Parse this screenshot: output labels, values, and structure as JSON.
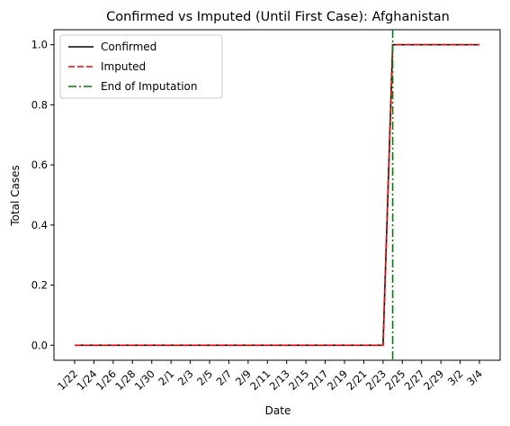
{
  "chart_data": {
    "type": "line",
    "title": "Confirmed vs Imputed (Until First Case): Afghanistan",
    "xlabel": "Date",
    "ylabel": "Total Cases",
    "x": [
      "1/22",
      "1/23",
      "1/24",
      "1/25",
      "1/26",
      "1/27",
      "1/28",
      "1/29",
      "1/30",
      "1/31",
      "2/1",
      "2/2",
      "2/3",
      "2/4",
      "2/5",
      "2/6",
      "2/7",
      "2/8",
      "2/9",
      "2/10",
      "2/11",
      "2/12",
      "2/13",
      "2/14",
      "2/15",
      "2/16",
      "2/17",
      "2/18",
      "2/19",
      "2/20",
      "2/21",
      "2/22",
      "2/23",
      "2/24",
      "2/25",
      "2/26",
      "2/27",
      "2/28",
      "2/29",
      "3/1",
      "3/2",
      "3/3",
      "3/4"
    ],
    "x_tick_labels": [
      "1/22",
      "1/24",
      "1/26",
      "1/28",
      "1/30",
      "2/1",
      "2/3",
      "2/5",
      "2/7",
      "2/9",
      "2/11",
      "2/13",
      "2/15",
      "2/17",
      "2/19",
      "2/21",
      "2/23",
      "2/25",
      "2/27",
      "2/29",
      "3/2",
      "3/4"
    ],
    "y_ticks": [
      "0.0",
      "0.2",
      "0.4",
      "0.6",
      "0.8",
      "1.0"
    ],
    "ylim": [
      -0.05,
      1.05
    ],
    "grid": false,
    "legend_position": "top-left",
    "series": [
      {
        "name": "Confirmed",
        "color": "#000000",
        "style": "solid",
        "values": [
          0,
          0,
          0,
          0,
          0,
          0,
          0,
          0,
          0,
          0,
          0,
          0,
          0,
          0,
          0,
          0,
          0,
          0,
          0,
          0,
          0,
          0,
          0,
          0,
          0,
          0,
          0,
          0,
          0,
          0,
          0,
          0,
          0,
          1,
          1,
          1,
          1,
          1,
          1,
          1,
          1,
          1,
          1
        ]
      },
      {
        "name": "Imputed",
        "color": "#ff0000",
        "style": "dashed",
        "values": [
          0,
          0,
          0,
          0,
          0,
          0,
          0,
          0,
          0,
          0,
          0,
          0,
          0,
          0,
          0,
          0,
          0,
          0,
          0,
          0,
          0,
          0,
          0,
          0,
          0,
          0,
          0,
          0,
          0,
          0,
          0,
          0,
          0,
          1,
          1,
          1,
          1,
          1,
          1,
          1,
          1,
          1,
          1
        ]
      }
    ],
    "vline": {
      "name": "End of Imputation",
      "x": "2/24",
      "color": "#008000",
      "style": "dashdot"
    }
  }
}
